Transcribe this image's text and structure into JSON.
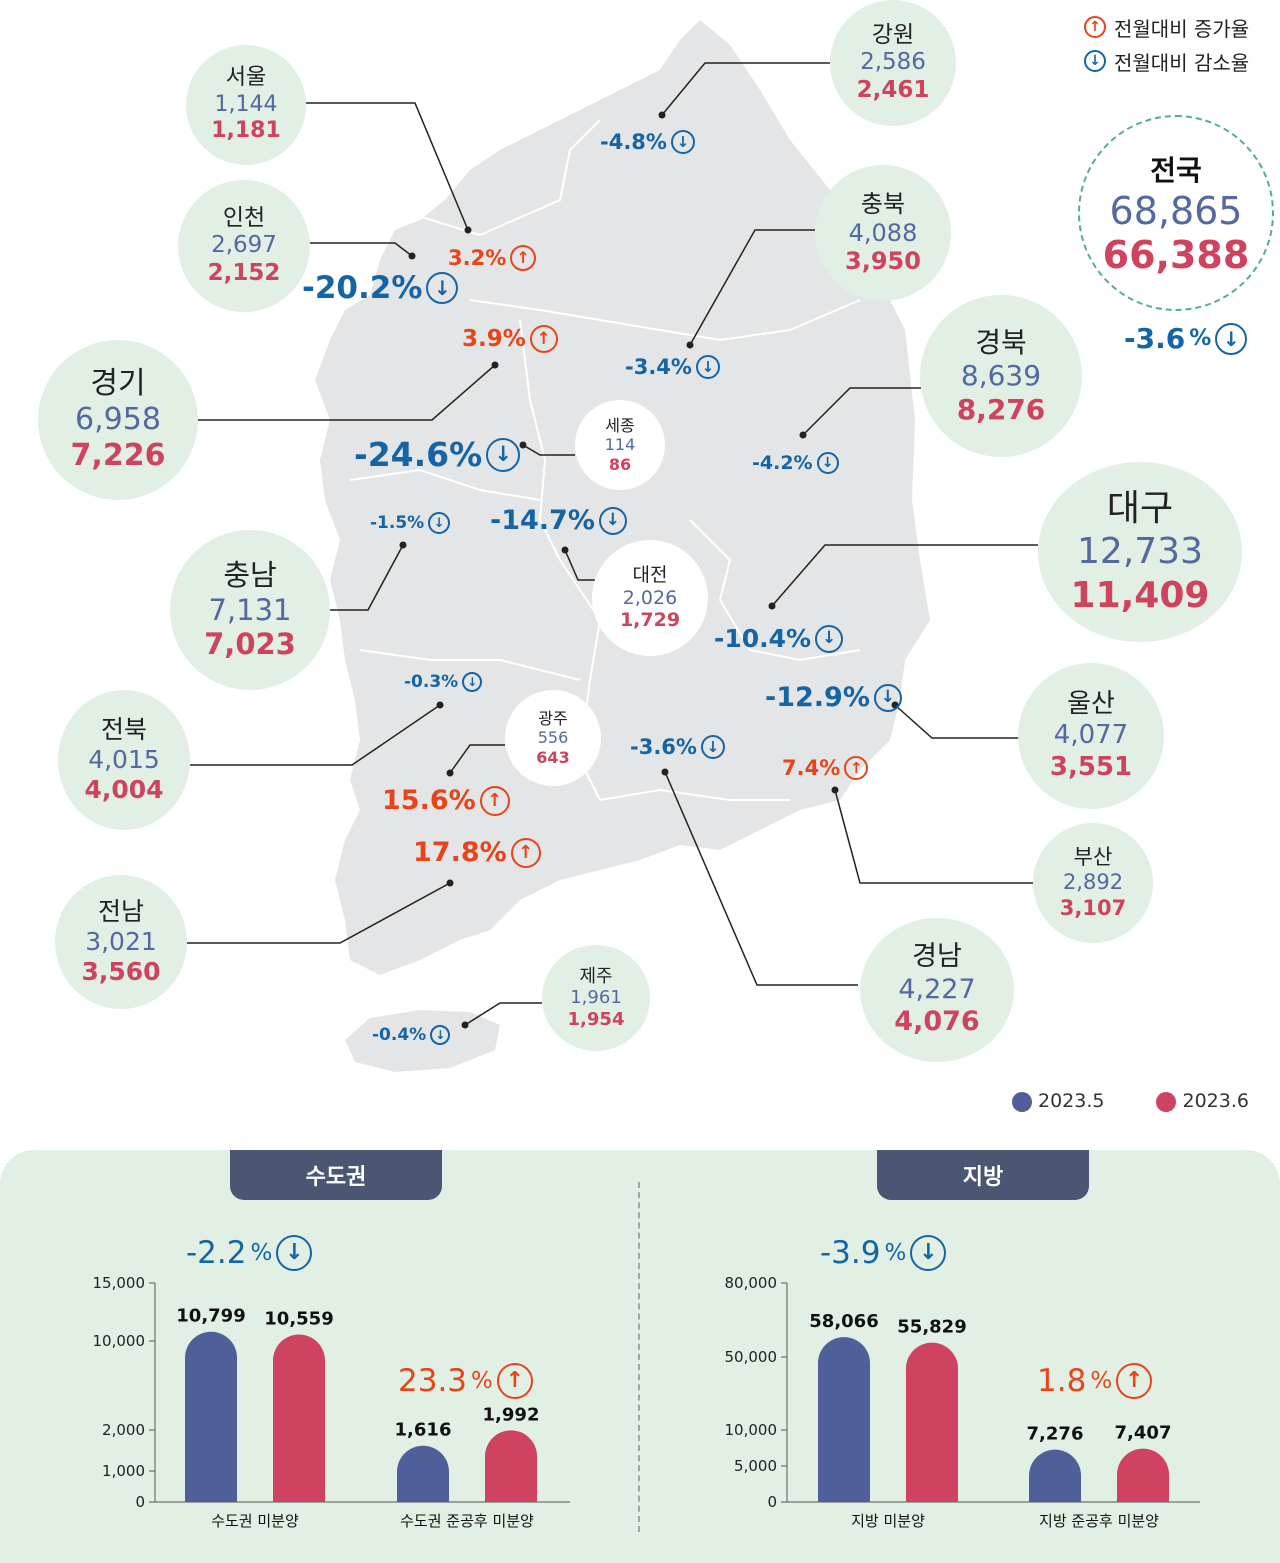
{
  "legend": {
    "increase_label": "전월대비 증가율",
    "decrease_label": "전월대비 감소율",
    "may_label": "2023.5",
    "june_label": "2023.6",
    "may_color": "#4f5f9a",
    "june_color": "#cf4260",
    "up_color": "#e84419",
    "down_color": "#1565a6"
  },
  "national": {
    "name": "전국",
    "may": "68,865",
    "jun": "66,388",
    "change": "-3.6",
    "unit": "%"
  },
  "regions": [
    {
      "name": "서울",
      "may": "1,144",
      "jun": "1,181",
      "change": "3.2%"
    },
    {
      "name": "인천",
      "may": "2,697",
      "jun": "2,152",
      "change": "-20.2%"
    },
    {
      "name": "경기",
      "may": "6,958",
      "jun": "7,226",
      "change": "3.9%"
    },
    {
      "name": "강원",
      "may": "2,586",
      "jun": "2,461",
      "change": "-4.8%"
    },
    {
      "name": "충북",
      "may": "4,088",
      "jun": "3,950",
      "change": "-3.4%"
    },
    {
      "name": "경북",
      "may": "8,639",
      "jun": "8,276",
      "change": "-4.2%"
    },
    {
      "name": "세종",
      "may": "114",
      "jun": "86",
      "change": "-24.6%"
    },
    {
      "name": "대전",
      "may": "2,026",
      "jun": "1,729",
      "change": "-14.7%"
    },
    {
      "name": "충남",
      "may": "7,131",
      "jun": "7,023",
      "change": "-1.5%"
    },
    {
      "name": "대구",
      "may": "12,733",
      "jun": "11,409",
      "change": "-10.4%"
    },
    {
      "name": "울산",
      "may": "4,077",
      "jun": "3,551",
      "change": "-12.9%"
    },
    {
      "name": "전북",
      "may": "4,015",
      "jun": "4,004",
      "change": "-0.3%"
    },
    {
      "name": "광주",
      "may": "556",
      "jun": "643",
      "change": "15.6%"
    },
    {
      "name": "경남",
      "may": "4,227",
      "jun": "4,076",
      "change": "-3.6%"
    },
    {
      "name": "부산",
      "may": "2,892",
      "jun": "3,107",
      "change": "7.4%"
    },
    {
      "name": "전남",
      "may": "3,021",
      "jun": "3,560",
      "change": "17.8%"
    },
    {
      "name": "제주",
      "may": "1,961",
      "jun": "1,954",
      "change": "-0.4%"
    }
  ],
  "chart_data": [
    {
      "type": "bar",
      "panel_title": "수도권",
      "categories": [
        "수도권 미분양",
        "수도권 준공후 미분양"
      ],
      "series": [
        {
          "name": "2023.5",
          "values": [
            10799,
            1616
          ]
        },
        {
          "name": "2023.6",
          "values": [
            10559,
            1992
          ]
        }
      ],
      "value_labels": [
        [
          "10,799",
          "1,616"
        ],
        [
          "10,559",
          "1,992"
        ]
      ],
      "changes": [
        "-2.2",
        "23.3"
      ],
      "change_unit": "%",
      "yticks": [
        0,
        1000,
        2000,
        10000,
        15000
      ],
      "ytick_labels": [
        "0",
        "1,000",
        "2,000",
        "10,000",
        "15,000"
      ],
      "ylim": [
        0,
        15000
      ],
      "xlabel": "",
      "ylabel": "",
      "title": ""
    },
    {
      "type": "bar",
      "panel_title": "지방",
      "categories": [
        "지방 미분양",
        "지방 준공후 미분양"
      ],
      "series": [
        {
          "name": "2023.5",
          "values": [
            58066,
            7276
          ]
        },
        {
          "name": "2023.6",
          "values": [
            55829,
            7407
          ]
        }
      ],
      "value_labels": [
        [
          "58,066",
          "7,276"
        ],
        [
          "55,829",
          "7,407"
        ]
      ],
      "changes": [
        "-3.9",
        "1.8"
      ],
      "change_unit": "%",
      "yticks": [
        0,
        5000,
        10000,
        50000,
        80000
      ],
      "ytick_labels": [
        "0",
        "5,000",
        "10,000",
        "50,000",
        "80,000"
      ],
      "ylim": [
        0,
        80000
      ],
      "xlabel": "",
      "ylabel": "",
      "title": ""
    }
  ]
}
